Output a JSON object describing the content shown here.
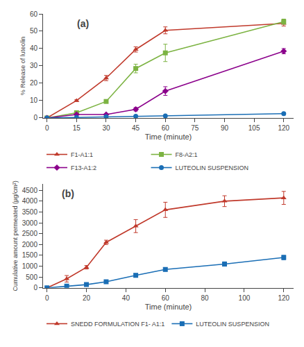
{
  "chart_data": [
    {
      "type": "line",
      "title": "(a)",
      "xlabel": "Time (minute)",
      "ylabel": "% Release of luteolin",
      "x": [
        0,
        15,
        30,
        45,
        60,
        120
      ],
      "xlim": [
        -2,
        125
      ],
      "ylim": [
        0,
        60
      ],
      "xticks": [
        0,
        15,
        30,
        45,
        60,
        75,
        90,
        105,
        120
      ],
      "yticks": [
        0,
        10,
        20,
        30,
        40,
        50,
        60
      ],
      "grid": false,
      "legend": "bottom",
      "series": [
        {
          "name": "F1-A1:1",
          "color": "#c0392b",
          "marker": "triangle-up",
          "values": [
            0,
            10,
            23,
            39.5,
            50.5,
            54.5
          ],
          "yerr": [
            0.0,
            0.5,
            1.5,
            1.5,
            2.0,
            1.5
          ]
        },
        {
          "name": "F8-A2:1",
          "color": "#7cb342",
          "marker": "square",
          "values": [
            0,
            3,
            9.5,
            28.5,
            37.5,
            55.5
          ],
          "yerr": [
            0.0,
            0.5,
            0.5,
            2.5,
            5.0,
            1.5
          ]
        },
        {
          "name": "F13-A1:2",
          "color": "#8b008b",
          "marker": "diamond",
          "values": [
            0,
            2,
            2,
            5,
            15.5,
            38.5
          ],
          "yerr": [
            0.0,
            0.3,
            0.3,
            1.0,
            2.5,
            1.5
          ]
        },
        {
          "name": "LUTEOLIN SUSPENSION",
          "color": "#1a6eb5",
          "marker": "circle",
          "values": [
            0,
            0.3,
            0.7,
            1.0,
            1.2,
            2.5
          ],
          "yerr": [
            0.0,
            0.1,
            0.1,
            0.1,
            0.1,
            0.2
          ]
        }
      ]
    },
    {
      "type": "line",
      "title": "(b)",
      "xlabel": "Time (minute)",
      "ylabel": "Cumulative amount permeated (µg/cm²)",
      "x": [
        0,
        10,
        20,
        30,
        45,
        60,
        90,
        120
      ],
      "xlim": [
        -2,
        125
      ],
      "ylim": [
        0,
        4800
      ],
      "xticks": [
        0,
        20,
        40,
        60,
        80,
        100,
        120
      ],
      "yticks": [
        0,
        500,
        1000,
        1500,
        2000,
        2500,
        3000,
        3500,
        4000,
        4500
      ],
      "grid": false,
      "legend": "bottom",
      "series": [
        {
          "name": "SNEDD FORMULATION F1- A1:1",
          "color": "#c0392b",
          "marker": "triangle-up",
          "values": [
            0,
            420,
            950,
            2100,
            2850,
            3600,
            4000,
            4150
          ],
          "yerr": [
            0.0,
            150,
            80,
            100,
            300,
            350,
            250,
            300
          ]
        },
        {
          "name": "LUTEOLIN SUSPENSION",
          "color": "#1a6eb5",
          "marker": "square",
          "values": [
            0,
            80,
            150,
            280,
            580,
            850,
            1100,
            1400
          ],
          "yerr": [
            0.0,
            30,
            30,
            50,
            80,
            80,
            100,
            100
          ]
        }
      ]
    }
  ]
}
